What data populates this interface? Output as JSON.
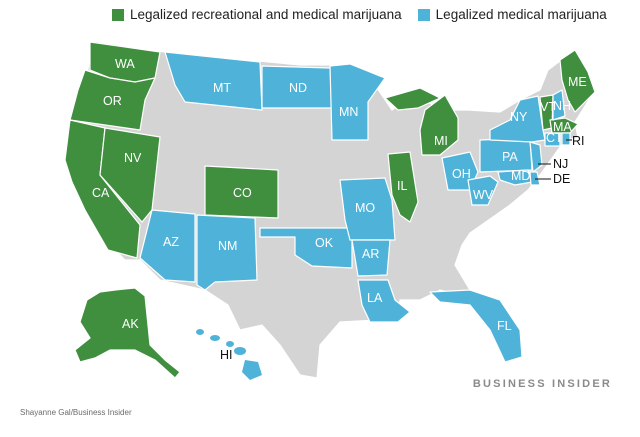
{
  "legend": {
    "recreational": {
      "label": "Legalized recreational and medical marijuana",
      "color": "#3f8f3f"
    },
    "medical": {
      "label": "Legalized medical marijuana",
      "color": "#4fb3d9"
    }
  },
  "colors": {
    "none": "#d4d4d4",
    "stroke": "#ffffff"
  },
  "states": {
    "WA": "WA",
    "OR": "OR",
    "CA": "CA",
    "NV": "NV",
    "CO": "CO",
    "AK": "AK",
    "MI": "MI",
    "IL": "IL",
    "ME": "ME",
    "VT": "VT",
    "MA": "MA",
    "MT": "MT",
    "ND": "ND",
    "MN": "MN",
    "AZ": "AZ",
    "NM": "NM",
    "OK": "OK",
    "MO": "MO",
    "AR": "AR",
    "LA": "LA",
    "FL": "FL",
    "OH": "OH",
    "WV": "WV",
    "PA": "PA",
    "NY": "NY",
    "NH": "NH",
    "CT": "CT",
    "RI": "RI",
    "NJ": "NJ",
    "DE": "DE",
    "MD": "MD",
    "HI": "HI"
  },
  "footer": {
    "brand": "BUSINESS INSIDER",
    "credit": "Shayanne Gal/Business Insider"
  }
}
